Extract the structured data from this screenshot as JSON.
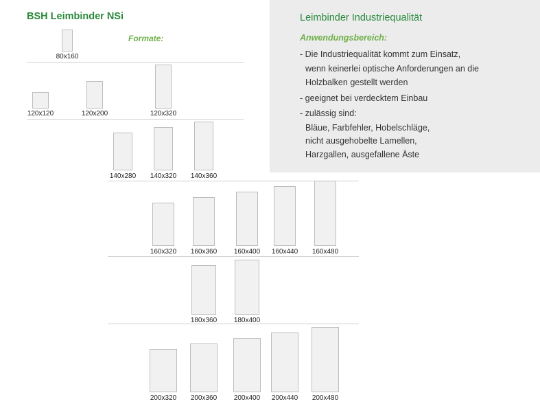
{
  "title": "BSH Leimbinder NSi",
  "formate_label": "Formate:",
  "panel": {
    "title": "Leimbinder Industriequalität",
    "subtitle": "Anwendungsbereich:",
    "lines": [
      "- Die Industriequalität kommt zum Einsatz,",
      "  wenn keinerlei optische Anforderungen an die",
      "  Holzbalken gestellt werden",
      "- geeignet bei verdecktem Einbau",
      "- zulässig sind:",
      "  Bläue, Farbfehler, Hobelschläge,",
      "  nicht ausgehobelte Lamellen,",
      "  Harzgallen, ausgefallene Äste"
    ]
  },
  "formats": [
    "80x160",
    "120x120",
    "120x200",
    "120x320",
    "140x280",
    "140x320",
    "140x360",
    "160x320",
    "160x360",
    "160x400",
    "160x440",
    "160x480",
    "180x360",
    "180x400",
    "200x320",
    "200x360",
    "200x400",
    "200x440",
    "200x480"
  ],
  "colors": {
    "title_green": "#2a8a3c",
    "subtitle_green": "#6fb04a",
    "panel_bg": "#ececec"
  }
}
